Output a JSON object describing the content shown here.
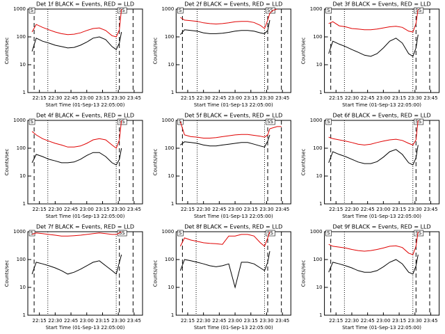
{
  "chart_data": [
    {
      "type": "line",
      "title": "Det 1f BLACK = Events, RED = LLD",
      "xlabel": "Start Time (01-Sep-13 22:05:00)",
      "ylabel": "Counts/sec",
      "log_y": true,
      "x": [
        "22:08",
        "22:12",
        "22:18",
        "22:24",
        "22:30",
        "22:36",
        "22:42",
        "22:48",
        "22:54",
        "23:00",
        "23:06",
        "23:12",
        "23:18",
        "23:24",
        "23:28",
        "23:31",
        "23:33"
      ],
      "xlim": [
        "22:04",
        "23:53"
      ],
      "xticks": [
        "22:15",
        "22:30",
        "22:45",
        "23:00",
        "23:15",
        "23:30",
        "23:45"
      ],
      "ylim": [
        1,
        1000
      ],
      "yticks": [
        1,
        10,
        100,
        1000
      ],
      "series": [
        {
          "name": "BLACK",
          "color": "#000000",
          "values": [
            30,
            90,
            70,
            60,
            50,
            45,
            40,
            42,
            50,
            65,
            90,
            100,
            80,
            45,
            35,
            60,
            150
          ]
        },
        {
          "name": "RED",
          "color": "#e00000",
          "values": [
            150,
            280,
            220,
            180,
            150,
            130,
            120,
            125,
            140,
            170,
            200,
            210,
            170,
            110,
            100,
            180,
            1000
          ]
        }
      ],
      "vlines": [
        {
          "x": "22:10",
          "style": "dashed"
        },
        {
          "x": "22:23",
          "style": "dotted"
        },
        {
          "x": "23:28",
          "style": "dotted"
        },
        {
          "x": "23:31",
          "style": "dashed"
        },
        {
          "x": "23:44",
          "style": "dashed"
        }
      ],
      "markers": [
        {
          "x": "22:08",
          "label": "S"
        },
        {
          "x": "23:32",
          "label": "SS"
        }
      ]
    },
    {
      "type": "line",
      "title": "Det 2f BLACK = Events, RED = LLD",
      "xlabel": "Start Time (01-Sep-13 22:05:00)",
      "ylabel": "Counts/sec",
      "log_y": true,
      "x": [
        "22:08",
        "22:12",
        "22:18",
        "22:24",
        "22:30",
        "22:36",
        "22:42",
        "22:48",
        "22:54",
        "23:00",
        "23:06",
        "23:12",
        "23:18",
        "23:24",
        "23:28",
        "23:31",
        "23:33",
        "23:36",
        "23:40"
      ],
      "xlim": [
        "22:04",
        "23:53"
      ],
      "xticks": [
        "22:15",
        "22:30",
        "22:45",
        "23:00",
        "23:15",
        "23:30",
        "23:45"
      ],
      "ylim": [
        1,
        1000
      ],
      "yticks": [
        1,
        10,
        100,
        1000
      ],
      "series": [
        {
          "name": "BLACK",
          "color": "#000000",
          "values": [
            120,
            180,
            170,
            160,
            140,
            130,
            130,
            135,
            145,
            160,
            170,
            170,
            160,
            140,
            130,
            170,
            400,
            null,
            null
          ]
        },
        {
          "name": "RED",
          "color": "#e00000",
          "values": [
            500,
            400,
            380,
            360,
            320,
            300,
            290,
            300,
            320,
            350,
            360,
            360,
            330,
            260,
            200,
            400,
            700,
            900,
            1000
          ]
        }
      ],
      "vlines": [
        {
          "x": "22:10",
          "style": "dashed"
        },
        {
          "x": "22:24",
          "style": "dotted"
        },
        {
          "x": "23:28",
          "style": "dotted"
        },
        {
          "x": "23:31",
          "style": "dashed"
        },
        {
          "x": "23:44",
          "style": "dashed"
        }
      ],
      "markers": [
        {
          "x": "22:08",
          "label": "S"
        },
        {
          "x": "23:32",
          "label": "SS"
        }
      ]
    },
    {
      "type": "line",
      "title": "Det 3f BLACK = Events, RED = LLD",
      "xlabel": "Start Time (01-Sep-13 22:05:00)",
      "ylabel": "Counts/sec",
      "log_y": true,
      "x": [
        "22:08",
        "22:12",
        "22:18",
        "22:24",
        "22:30",
        "22:36",
        "22:42",
        "22:48",
        "22:54",
        "23:00",
        "23:06",
        "23:12",
        "23:18",
        "23:24",
        "23:28",
        "23:31",
        "23:33"
      ],
      "xlim": [
        "22:04",
        "23:53"
      ],
      "xticks": [
        "22:15",
        "22:30",
        "22:45",
        "23:00",
        "23:15",
        "23:30",
        "23:45"
      ],
      "ylim": [
        1,
        1000
      ],
      "yticks": [
        1,
        10,
        100,
        1000
      ],
      "series": [
        {
          "name": "BLACK",
          "color": "#000000",
          "values": [
            25,
            70,
            55,
            45,
            35,
            28,
            22,
            20,
            25,
            40,
            70,
            90,
            60,
            25,
            20,
            40,
            120
          ]
        },
        {
          "name": "RED",
          "color": "#e00000",
          "values": [
            300,
            350,
            250,
            230,
            200,
            190,
            180,
            180,
            190,
            210,
            230,
            240,
            220,
            160,
            150,
            300,
            1000
          ]
        }
      ],
      "vlines": [
        {
          "x": "22:10",
          "style": "dashed"
        },
        {
          "x": "22:23",
          "style": "dotted"
        },
        {
          "x": "23:28",
          "style": "dotted"
        },
        {
          "x": "23:31",
          "style": "dashed"
        },
        {
          "x": "23:44",
          "style": "dashed"
        }
      ],
      "markers": [
        {
          "x": "22:08",
          "label": "S"
        },
        {
          "x": "23:32",
          "label": "SS"
        }
      ]
    },
    {
      "type": "line",
      "title": "Det 4f BLACK = Events, RED = LLD",
      "xlabel": "Start Time (01-Sep-13 22:05:00)",
      "ylabel": "Counts/sec",
      "log_y": true,
      "x": [
        "22:08",
        "22:12",
        "22:18",
        "22:24",
        "22:30",
        "22:36",
        "22:42",
        "22:48",
        "22:54",
        "23:00",
        "23:06",
        "23:12",
        "23:18",
        "23:24",
        "23:28",
        "23:31",
        "23:33"
      ],
      "xlim": [
        "22:04",
        "23:53"
      ],
      "xticks": [
        "22:15",
        "22:30",
        "22:45",
        "23:00",
        "23:15",
        "23:30",
        "23:45"
      ],
      "ylim": [
        1,
        1000
      ],
      "yticks": [
        1,
        10,
        100,
        1000
      ],
      "series": [
        {
          "name": "BLACK",
          "color": "#000000",
          "values": [
            30,
            60,
            50,
            40,
            35,
            30,
            30,
            32,
            40,
            55,
            70,
            70,
            50,
            30,
            25,
            40,
            100
          ]
        },
        {
          "name": "RED",
          "color": "#e00000",
          "values": [
            400,
            300,
            220,
            180,
            150,
            130,
            110,
            110,
            120,
            150,
            200,
            220,
            200,
            130,
            100,
            200,
            1000
          ]
        }
      ],
      "vlines": [
        {
          "x": "22:10",
          "style": "dashed"
        },
        {
          "x": "22:23",
          "style": "dotted"
        },
        {
          "x": "23:28",
          "style": "dotted"
        },
        {
          "x": "23:31",
          "style": "dashed"
        },
        {
          "x": "23:44",
          "style": "dashed"
        }
      ],
      "markers": [
        {
          "x": "22:08",
          "label": "S"
        },
        {
          "x": "23:32",
          "label": "SS"
        }
      ]
    },
    {
      "type": "line",
      "title": "Det 5f BLACK = Events, RED = LLD",
      "xlabel": "Start Time (01-Sep-13 22:05:00)",
      "ylabel": "Counts/sec",
      "log_y": true,
      "x": [
        "22:08",
        "22:12",
        "22:18",
        "22:24",
        "22:30",
        "22:36",
        "22:42",
        "22:48",
        "22:54",
        "23:00",
        "23:06",
        "23:12",
        "23:18",
        "23:24",
        "23:28",
        "23:31",
        "23:33",
        "23:40",
        "23:44"
      ],
      "xlim": [
        "22:04",
        "23:53"
      ],
      "xticks": [
        "22:15",
        "22:30",
        "22:45",
        "23:00",
        "23:15",
        "23:30",
        "23:45"
      ],
      "ylim": [
        1,
        1000
      ],
      "yticks": [
        1,
        10,
        100,
        1000
      ],
      "series": [
        {
          "name": "BLACK",
          "color": "#000000",
          "values": [
            130,
            170,
            160,
            150,
            130,
            120,
            120,
            130,
            140,
            150,
            160,
            160,
            140,
            120,
            110,
            180,
            300,
            null,
            null
          ]
        },
        {
          "name": "RED",
          "color": "#e00000",
          "values": [
            900,
            300,
            260,
            250,
            230,
            230,
            240,
            260,
            280,
            300,
            310,
            310,
            290,
            270,
            250,
            300,
            500,
            600,
            600
          ]
        }
      ],
      "vlines": [
        {
          "x": "22:10",
          "style": "dashed"
        },
        {
          "x": "22:24",
          "style": "dotted"
        },
        {
          "x": "23:28",
          "style": "dotted"
        },
        {
          "x": "23:31",
          "style": "dashed"
        },
        {
          "x": "23:44",
          "style": "dashed"
        }
      ],
      "markers": [
        {
          "x": "22:08",
          "label": "S"
        },
        {
          "x": "23:32",
          "label": "SS"
        }
      ]
    },
    {
      "type": "line",
      "title": "Det 6f BLACK = Events, RED = LLD",
      "xlabel": "Start Time (01-Sep-13 22:05:00)",
      "ylabel": "Counts/sec",
      "log_y": true,
      "x": [
        "22:08",
        "22:12",
        "22:18",
        "22:24",
        "22:30",
        "22:36",
        "22:42",
        "22:48",
        "22:54",
        "23:00",
        "23:06",
        "23:12",
        "23:18",
        "23:24",
        "23:28",
        "23:31",
        "23:33"
      ],
      "xlim": [
        "22:04",
        "23:53"
      ],
      "xticks": [
        "22:15",
        "22:30",
        "22:45",
        "23:00",
        "23:15",
        "23:30",
        "23:45"
      ],
      "ylim": [
        1,
        1000
      ],
      "yticks": [
        1,
        10,
        100,
        1000
      ],
      "series": [
        {
          "name": "BLACK",
          "color": "#000000",
          "values": [
            30,
            75,
            60,
            50,
            40,
            32,
            28,
            28,
            33,
            48,
            75,
            90,
            60,
            30,
            25,
            45,
            130
          ]
        },
        {
          "name": "RED",
          "color": "#e00000",
          "values": [
            250,
            220,
            200,
            180,
            160,
            140,
            130,
            140,
            160,
            180,
            200,
            210,
            190,
            150,
            130,
            200,
            1000
          ]
        }
      ],
      "vlines": [
        {
          "x": "22:10",
          "style": "dashed"
        },
        {
          "x": "22:23",
          "style": "dotted"
        },
        {
          "x": "23:28",
          "style": "dotted"
        },
        {
          "x": "23:31",
          "style": "dashed"
        },
        {
          "x": "23:44",
          "style": "dashed"
        }
      ],
      "markers": [
        {
          "x": "22:08",
          "label": "S"
        },
        {
          "x": "23:32",
          "label": "SS"
        }
      ]
    },
    {
      "type": "line",
      "title": "Det 7f BLACK = Events, RED = LLD",
      "xlabel": "Start Time (01-Sep-13 22:05:00)",
      "ylabel": "Counts/sec",
      "log_y": true,
      "x": [
        "22:08",
        "22:12",
        "22:18",
        "22:24",
        "22:30",
        "22:36",
        "22:42",
        "22:48",
        "22:54",
        "23:00",
        "23:06",
        "23:12",
        "23:18",
        "23:24",
        "23:28",
        "23:31",
        "23:33"
      ],
      "xlim": [
        "22:04",
        "23:53"
      ],
      "xticks": [
        "22:15",
        "22:30",
        "22:45",
        "23:00",
        "23:15",
        "23:30",
        "23:45"
      ],
      "ylim": [
        1,
        1000
      ],
      "yticks": [
        1,
        10,
        100,
        1000
      ],
      "series": [
        {
          "name": "BLACK",
          "color": "#000000",
          "values": [
            30,
            80,
            70,
            60,
            50,
            40,
            30,
            35,
            45,
            60,
            80,
            90,
            60,
            40,
            30,
            80,
            150
          ]
        },
        {
          "name": "RED",
          "color": "#e00000",
          "values": [
            800,
            900,
            850,
            800,
            750,
            700,
            700,
            720,
            750,
            800,
            850,
            900,
            850,
            800,
            800,
            900,
            1000
          ]
        }
      ],
      "vlines": [
        {
          "x": "22:10",
          "style": "dashed"
        },
        {
          "x": "22:23",
          "style": "dotted"
        },
        {
          "x": "23:28",
          "style": "dotted"
        },
        {
          "x": "23:31",
          "style": "dashed"
        },
        {
          "x": "23:44",
          "style": "dashed"
        }
      ],
      "markers": [
        {
          "x": "22:08",
          "label": "S"
        },
        {
          "x": "23:32",
          "label": "SS"
        }
      ]
    },
    {
      "type": "line",
      "title": "Det 8f BLACK = Events, RED = LLD",
      "xlabel": "Start Time (01-Sep-13 22:05:00)",
      "ylabel": "Counts/sec",
      "log_y": true,
      "x": [
        "22:08",
        "22:12",
        "22:18",
        "22:24",
        "22:30",
        "22:36",
        "22:42",
        "22:48",
        "22:54",
        "23:00",
        "23:06",
        "23:12",
        "23:18",
        "23:24",
        "23:28",
        "23:31",
        "23:33"
      ],
      "xlim": [
        "22:04",
        "23:53"
      ],
      "xticks": [
        "22:15",
        "22:30",
        "22:45",
        "23:00",
        "23:15",
        "23:30",
        "23:45"
      ],
      "ylim": [
        1,
        1000
      ],
      "yticks": [
        1,
        10,
        100,
        1000
      ],
      "series": [
        {
          "name": "BLACK",
          "color": "#000000",
          "values": [
            40,
            100,
            90,
            80,
            70,
            60,
            55,
            60,
            70,
            10,
            80,
            80,
            70,
            50,
            40,
            80,
            200
          ]
        },
        {
          "name": "RED",
          "color": "#e00000",
          "values": [
            300,
            600,
            500,
            450,
            400,
            380,
            370,
            350,
            700,
            700,
            800,
            800,
            700,
            400,
            300,
            600,
            1000
          ]
        }
      ],
      "vlines": [
        {
          "x": "22:10",
          "style": "dashed"
        },
        {
          "x": "22:23",
          "style": "dotted"
        },
        {
          "x": "23:28",
          "style": "dotted"
        },
        {
          "x": "23:31",
          "style": "dashed"
        },
        {
          "x": "23:44",
          "style": "dashed"
        }
      ],
      "markers": [
        {
          "x": "22:08",
          "label": "S"
        },
        {
          "x": "23:32",
          "label": "SS"
        }
      ]
    },
    {
      "type": "line",
      "title": "Det 9f BLACK = Events, RED = LLD",
      "xlabel": "Start Time (01-Sep-13 22:05:00)",
      "ylabel": "Counts/sec",
      "log_y": true,
      "x": [
        "22:08",
        "22:12",
        "22:18",
        "22:24",
        "22:30",
        "22:36",
        "22:42",
        "22:48",
        "22:54",
        "23:00",
        "23:06",
        "23:12",
        "23:18",
        "23:24",
        "23:28",
        "23:31",
        "23:33"
      ],
      "xlim": [
        "22:04",
        "23:53"
      ],
      "xticks": [
        "22:15",
        "22:30",
        "22:45",
        "23:00",
        "23:15",
        "23:30",
        "23:45"
      ],
      "ylim": [
        1,
        1000
      ],
      "yticks": [
        1,
        10,
        100,
        1000
      ],
      "series": [
        {
          "name": "BLACK",
          "color": "#000000",
          "values": [
            35,
            80,
            70,
            60,
            50,
            40,
            35,
            35,
            40,
            55,
            80,
            100,
            70,
            35,
            30,
            60,
            150
          ]
        },
        {
          "name": "RED",
          "color": "#e00000",
          "values": [
            350,
            300,
            280,
            260,
            230,
            210,
            200,
            210,
            230,
            260,
            300,
            310,
            270,
            170,
            150,
            300,
            1000
          ]
        }
      ],
      "vlines": [
        {
          "x": "22:10",
          "style": "dashed"
        },
        {
          "x": "22:23",
          "style": "dotted"
        },
        {
          "x": "23:28",
          "style": "dotted"
        },
        {
          "x": "23:31",
          "style": "dashed"
        },
        {
          "x": "23:44",
          "style": "dashed"
        }
      ],
      "markers": [
        {
          "x": "22:08",
          "label": "S"
        },
        {
          "x": "23:32",
          "label": "SS"
        }
      ]
    }
  ]
}
